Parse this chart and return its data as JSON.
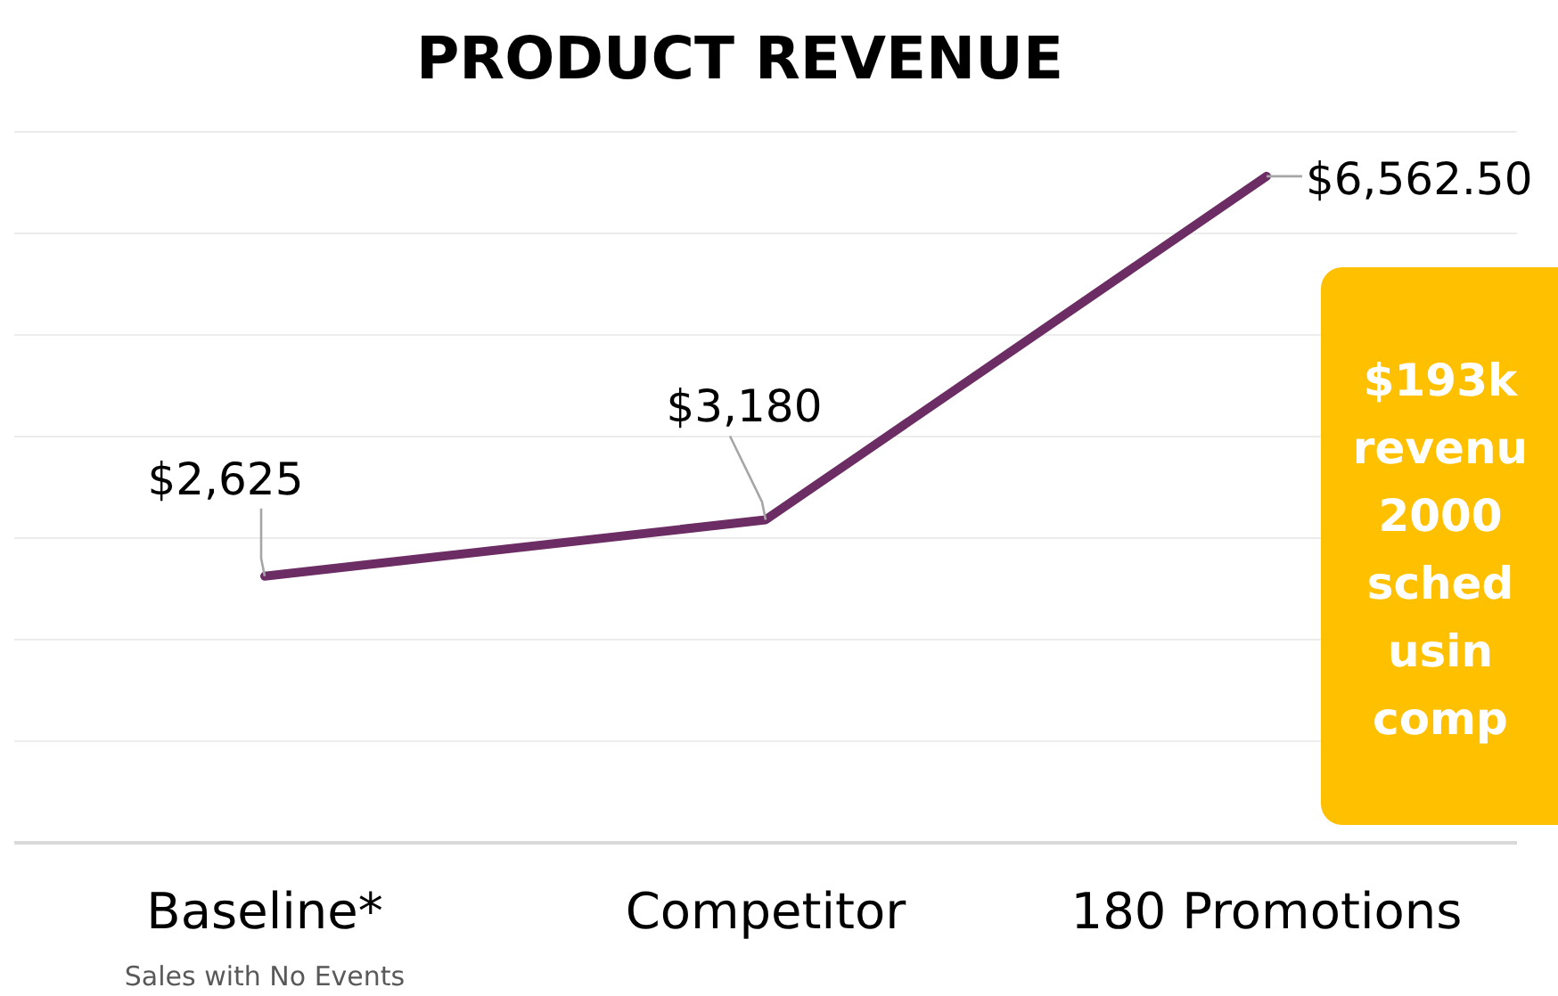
{
  "chart_data": {
    "type": "line",
    "title": "PRODUCT REVENUE",
    "categories": [
      "Baseline*",
      "Competitor",
      "180 Promotions"
    ],
    "series": [
      {
        "color": "#6b2d63",
        "values": [
          2625,
          3180,
          6562.5
        ],
        "value_labels": [
          "$2,625",
          "$3,180",
          "$6,562.50"
        ]
      }
    ],
    "ylim": [
      0,
      7000
    ],
    "yticks": [
      {
        "value": 0,
        "label": null
      },
      {
        "value": 1000,
        "label": null
      },
      {
        "value": 2000,
        "label": null
      },
      {
        "value": 3000,
        "label": null
      },
      {
        "value": 4000,
        "label": null
      },
      {
        "value": 5000,
        "label": null
      },
      {
        "value": 6000,
        "label": null
      },
      {
        "value": 7000,
        "label": null
      }
    ],
    "grid": "y",
    "tick_labels": "x",
    "marker": "none",
    "line_style": "solid",
    "annotations": [
      "Sales with No Events",
      "$193k\nrevenu\n2000\nsched\nusin\ncomp"
    ]
  }
}
